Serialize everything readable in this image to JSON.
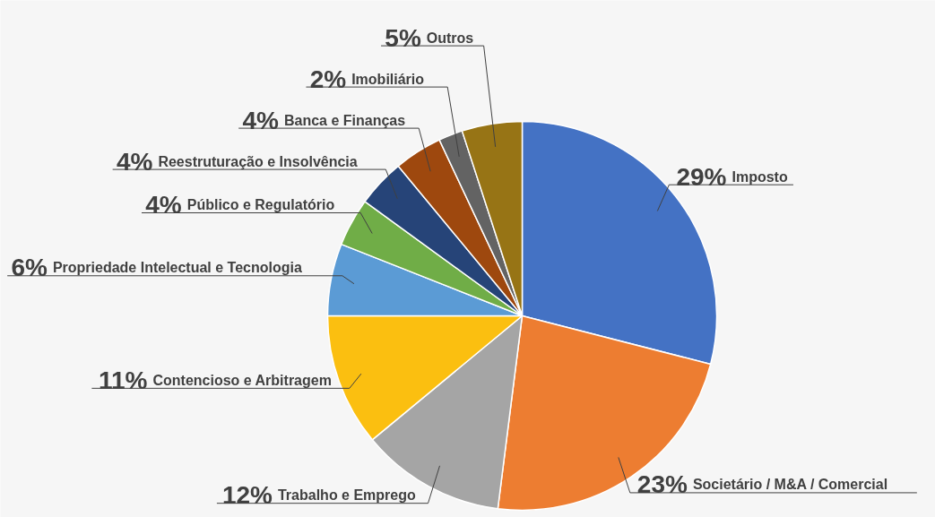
{
  "chart_data": {
    "type": "pie",
    "categories": [
      "Imposto",
      "Societário / M&A / Comercial",
      "Trabalho e Emprego",
      "Contencioso e Arbitragem",
      "Propriedade Intelectual e Tecnologia",
      "Público e Regulatório",
      "Reestruturação e Insolvência",
      "Banca e Finanças",
      "Imobiliário",
      "Outros"
    ],
    "values": [
      29,
      23,
      12,
      11,
      6,
      4,
      4,
      4,
      2,
      5
    ],
    "value_labels": [
      "29%",
      "23%",
      "12%",
      "11%",
      "6%",
      "4%",
      "4%",
      "4%",
      "2%",
      "5%"
    ],
    "colors": [
      "#4472c4",
      "#ed7d31",
      "#a5a5a5",
      "#fbbf10",
      "#5b9bd5",
      "#70ad47",
      "#264478",
      "#9e480e",
      "#636363",
      "#977415"
    ]
  }
}
